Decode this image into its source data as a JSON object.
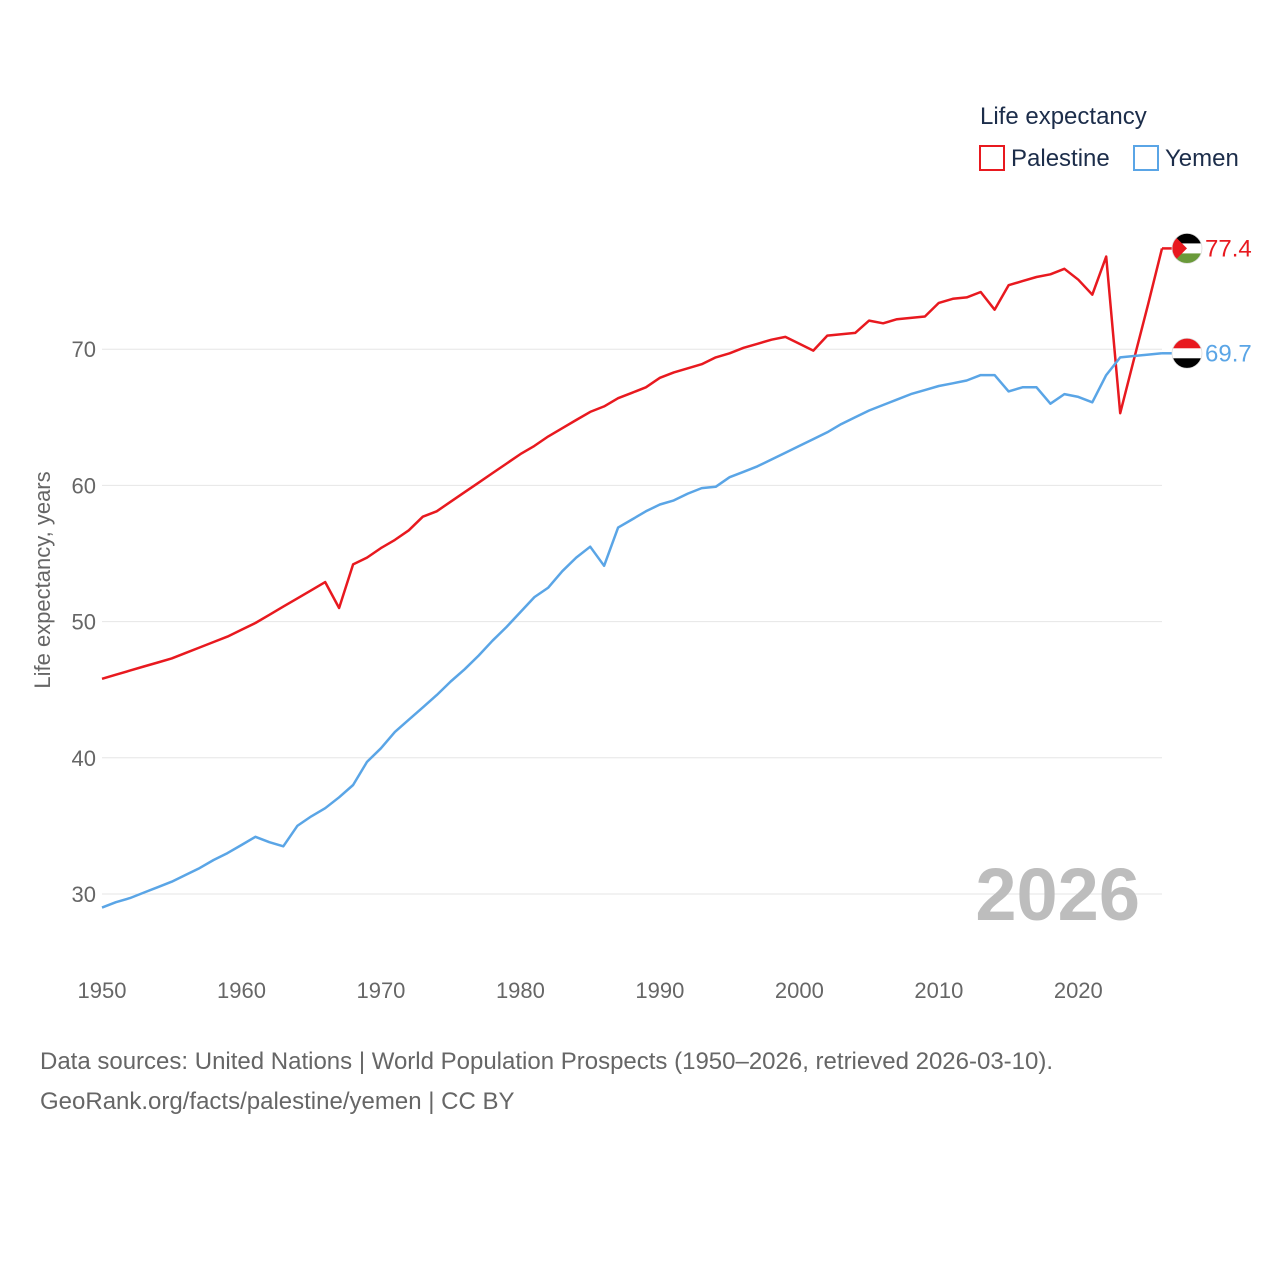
{
  "chart_data": {
    "type": "line",
    "title": "Life expectancy",
    "ylabel": "Life expectancy, years",
    "xlabel": "",
    "xlim": [
      1950,
      2026
    ],
    "ylim": [
      25,
      80
    ],
    "x_ticks": [
      1950,
      1960,
      1970,
      1980,
      1990,
      2000,
      2010,
      2020
    ],
    "y_ticks": [
      30,
      40,
      50,
      60,
      70
    ],
    "grid": true,
    "legend_position": "top-right",
    "current_year_label": "2026",
    "x": [
      1950,
      1951,
      1952,
      1953,
      1954,
      1955,
      1956,
      1957,
      1958,
      1959,
      1960,
      1961,
      1962,
      1963,
      1964,
      1965,
      1966,
      1967,
      1968,
      1969,
      1970,
      1971,
      1972,
      1973,
      1974,
      1975,
      1976,
      1977,
      1978,
      1979,
      1980,
      1981,
      1982,
      1983,
      1984,
      1985,
      1986,
      1987,
      1988,
      1989,
      1990,
      1991,
      1992,
      1993,
      1994,
      1995,
      1996,
      1997,
      1998,
      1999,
      2000,
      2001,
      2002,
      2003,
      2004,
      2005,
      2006,
      2007,
      2008,
      2009,
      2010,
      2011,
      2012,
      2013,
      2014,
      2015,
      2016,
      2017,
      2018,
      2019,
      2020,
      2021,
      2022,
      2023,
      2024,
      2025,
      2026
    ],
    "series": [
      {
        "name": "Palestine",
        "color": "#e8191f",
        "flag": "palestine-flag",
        "end_label": "77.4",
        "values": [
          45.8,
          46.1,
          46.4,
          46.7,
          47.0,
          47.3,
          47.7,
          48.1,
          48.5,
          48.9,
          49.4,
          49.9,
          50.5,
          51.1,
          51.7,
          52.3,
          52.9,
          51.0,
          54.2,
          54.7,
          55.4,
          56.0,
          56.7,
          57.7,
          58.1,
          58.8,
          59.5,
          60.2,
          60.9,
          61.6,
          62.3,
          62.9,
          63.6,
          64.2,
          64.8,
          65.4,
          65.8,
          66.4,
          66.8,
          67.2,
          67.9,
          68.3,
          68.6,
          68.9,
          69.4,
          69.7,
          70.1,
          70.4,
          70.7,
          70.9,
          70.4,
          69.9,
          71.0,
          71.1,
          71.2,
          72.1,
          71.9,
          72.2,
          72.3,
          72.4,
          73.4,
          73.7,
          73.8,
          74.2,
          72.9,
          74.7,
          75.0,
          75.3,
          75.5,
          75.9,
          75.1,
          74.0,
          76.8,
          65.3,
          69.3,
          73.3,
          77.4
        ]
      },
      {
        "name": "Yemen",
        "color": "#5aa5e6",
        "flag": "yemen-flag",
        "end_label": "69.7",
        "values": [
          29.0,
          29.4,
          29.7,
          30.1,
          30.5,
          30.9,
          31.4,
          31.9,
          32.5,
          33.0,
          33.6,
          34.2,
          33.8,
          33.5,
          35.0,
          35.7,
          36.3,
          37.1,
          38.0,
          39.7,
          40.7,
          41.9,
          42.8,
          43.7,
          44.6,
          45.6,
          46.5,
          47.5,
          48.6,
          49.6,
          50.7,
          51.8,
          52.5,
          53.7,
          54.7,
          55.5,
          54.1,
          56.9,
          57.5,
          58.1,
          58.6,
          58.9,
          59.4,
          59.8,
          59.9,
          60.6,
          61.0,
          61.4,
          61.9,
          62.4,
          62.9,
          63.4,
          63.9,
          64.5,
          65.0,
          65.5,
          65.9,
          66.3,
          66.7,
          67.0,
          67.3,
          67.5,
          67.7,
          68.1,
          68.1,
          66.9,
          67.2,
          67.2,
          66.0,
          66.7,
          66.5,
          66.1,
          68.1,
          69.4,
          69.5,
          69.6,
          69.7
        ]
      }
    ]
  },
  "footer": {
    "line1": "Data sources: United Nations | World Population Prospects (1950–2026, retrieved 2026-03-10).",
    "line2": "GeoRank.org/facts/palestine/yemen | CC BY"
  }
}
